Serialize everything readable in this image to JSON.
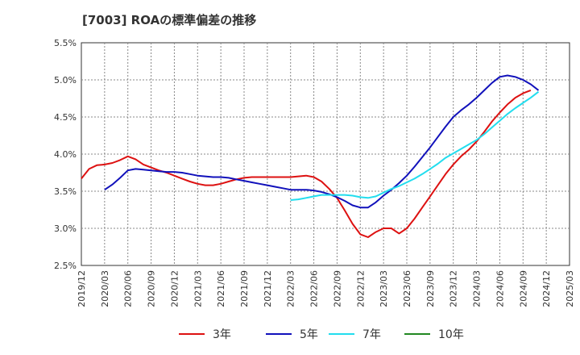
{
  "chart_data": {
    "type": "line",
    "title": "[7003]  ROAの標準偏差の推移",
    "xlabel": "",
    "ylabel": "",
    "x_ticks": [
      "2019/12",
      "2020/03",
      "2020/06",
      "2020/09",
      "2020/12",
      "2021/03",
      "2021/06",
      "2021/09",
      "2021/12",
      "2022/03",
      "2022/06",
      "2022/09",
      "2022/12",
      "2023/03",
      "2023/06",
      "2023/09",
      "2023/12",
      "2024/03",
      "2024/06",
      "2024/09",
      "2024/12",
      "2025/03"
    ],
    "y_ticks": [
      "2.5%",
      "3.0%",
      "3.5%",
      "4.0%",
      "4.5%",
      "5.0%",
      "5.5%"
    ],
    "ylim": [
      2.5,
      5.5
    ],
    "grid": true,
    "legend_position": "bottom",
    "colors": {
      "3年": "#dd1111",
      "5年": "#1111bb",
      "7年": "#22ddee",
      "10年": "#228822"
    },
    "series": [
      {
        "name": "3年",
        "start_month_index": 0,
        "values": [
          3.67,
          3.8,
          3.85,
          3.86,
          3.88,
          3.92,
          3.97,
          3.93,
          3.86,
          3.82,
          3.78,
          3.75,
          3.71,
          3.67,
          3.63,
          3.6,
          3.58,
          3.58,
          3.6,
          3.63,
          3.66,
          3.68,
          3.69,
          3.69,
          3.69,
          3.69,
          3.69,
          3.69,
          3.7,
          3.71,
          3.69,
          3.63,
          3.53,
          3.41,
          3.24,
          3.06,
          2.92,
          2.88,
          2.95,
          3.0,
          3.0,
          2.93,
          3.0,
          3.13,
          3.28,
          3.43,
          3.58,
          3.73,
          3.86,
          3.97,
          4.06,
          4.17,
          4.3,
          4.44,
          4.56,
          4.67,
          4.76,
          4.82,
          4.86
        ]
      },
      {
        "name": "5年",
        "start_month_index": 3,
        "values": [
          3.52,
          3.59,
          3.68,
          3.78,
          3.8,
          3.79,
          3.78,
          3.77,
          3.76,
          3.76,
          3.75,
          3.73,
          3.71,
          3.7,
          3.69,
          3.69,
          3.68,
          3.66,
          3.64,
          3.62,
          3.6,
          3.58,
          3.56,
          3.54,
          3.52,
          3.52,
          3.52,
          3.51,
          3.49,
          3.46,
          3.42,
          3.37,
          3.31,
          3.28,
          3.28,
          3.35,
          3.44,
          3.52,
          3.61,
          3.71,
          3.83,
          3.96,
          4.09,
          4.23,
          4.37,
          4.5,
          4.59,
          4.67,
          4.76,
          4.86,
          4.96,
          5.04,
          5.06,
          5.04,
          5.0,
          4.94,
          4.86
        ]
      },
      {
        "name": "7年",
        "start_month_index": 27,
        "values": [
          3.38,
          3.39,
          3.41,
          3.43,
          3.45,
          3.45,
          3.45,
          3.45,
          3.44,
          3.42,
          3.41,
          3.43,
          3.48,
          3.53,
          3.57,
          3.62,
          3.67,
          3.73,
          3.8,
          3.87,
          3.95,
          4.01,
          4.07,
          4.13,
          4.19,
          4.27,
          4.36,
          4.45,
          4.54,
          4.62,
          4.69,
          4.76,
          4.84
        ]
      },
      {
        "name": "10年",
        "start_month_index": 0,
        "values": []
      }
    ]
  }
}
